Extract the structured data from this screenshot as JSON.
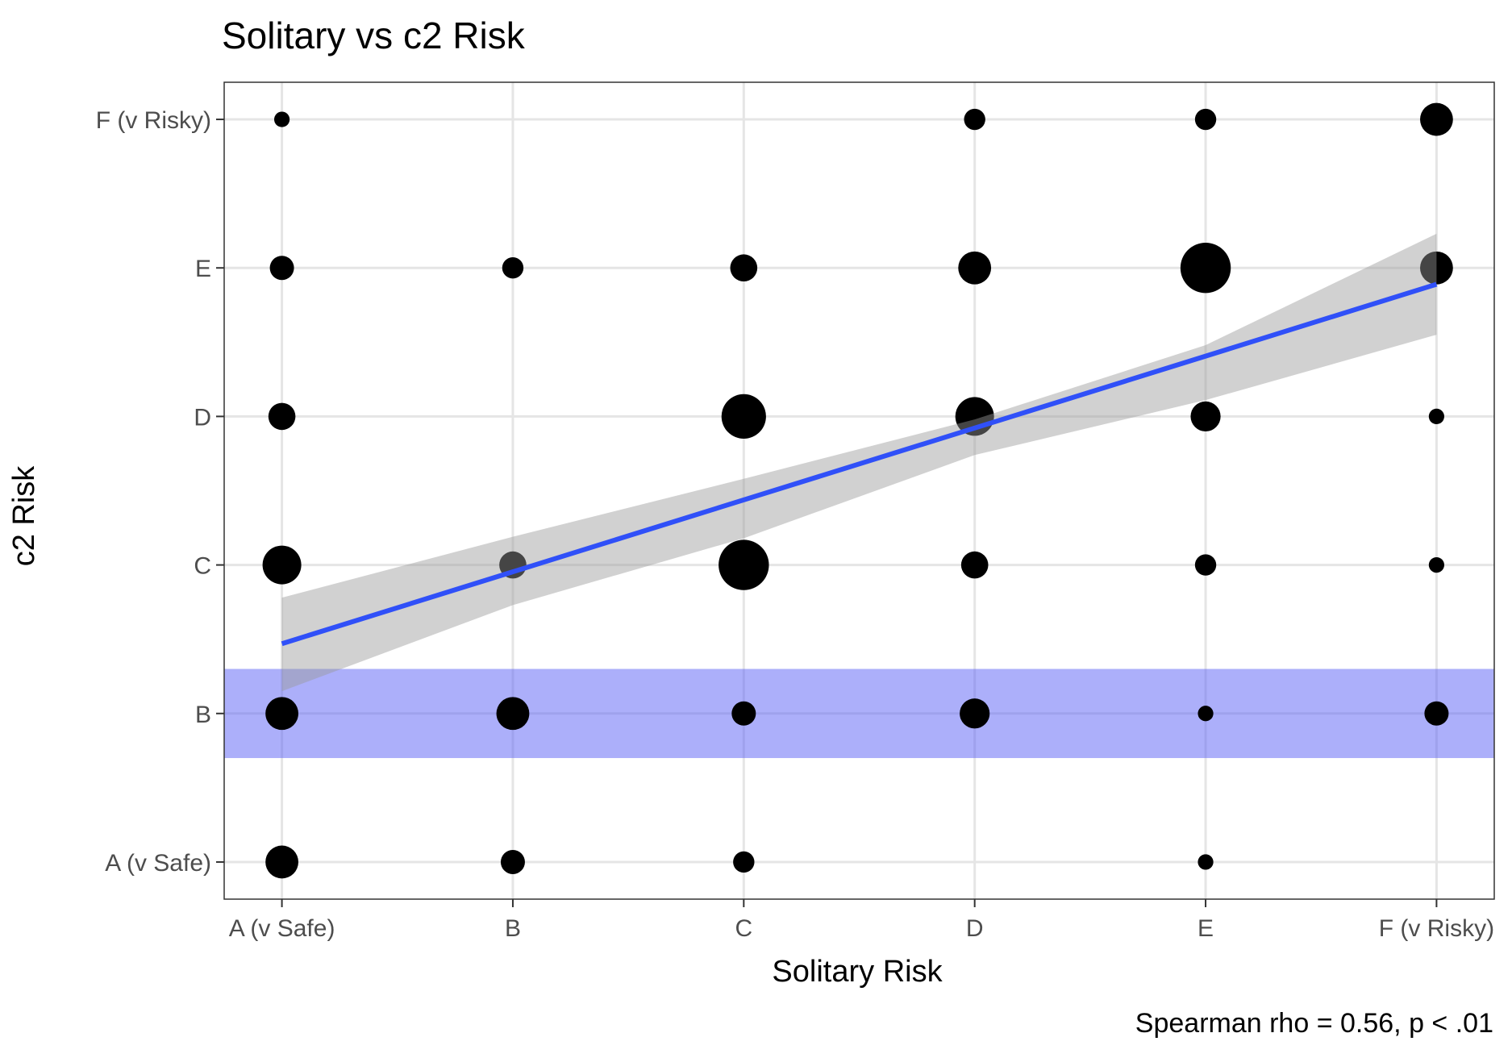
{
  "chart_data": {
    "type": "scatter",
    "title": "Solitary vs c2 Risk",
    "xlabel": "Solitary Risk",
    "ylabel": "c2 Risk",
    "caption": "Spearman rho = 0.56, p < .01",
    "x_categories": [
      "A (v Safe)",
      "B",
      "C",
      "D",
      "E",
      "F (v Risky)"
    ],
    "y_categories": [
      "A (v Safe)",
      "B",
      "C",
      "D",
      "E",
      "F (v Risky)"
    ],
    "xlim": [
      0.75,
      6.25
    ],
    "ylim": [
      0.75,
      6.25
    ],
    "grid": true,
    "legend": "none",
    "point_color": "#000000",
    "points": [
      {
        "x": "A (v Safe)",
        "y": "F (v Risky)",
        "size": 1
      },
      {
        "x": "D",
        "y": "F (v Risky)",
        "size": 2
      },
      {
        "x": "E",
        "y": "F (v Risky)",
        "size": 2
      },
      {
        "x": "F (v Risky)",
        "y": "F (v Risky)",
        "size": 4
      },
      {
        "x": "A (v Safe)",
        "y": "E",
        "size": 2.5
      },
      {
        "x": "B",
        "y": "E",
        "size": 2
      },
      {
        "x": "C",
        "y": "E",
        "size": 3
      },
      {
        "x": "D",
        "y": "E",
        "size": 4
      },
      {
        "x": "E",
        "y": "E",
        "size": 7
      },
      {
        "x": "F (v Risky)",
        "y": "E",
        "size": 4
      },
      {
        "x": "A (v Safe)",
        "y": "D",
        "size": 3
      },
      {
        "x": "C",
        "y": "D",
        "size": 6
      },
      {
        "x": "D",
        "y": "D",
        "size": 5
      },
      {
        "x": "E",
        "y": "D",
        "size": 3.5
      },
      {
        "x": "F (v Risky)",
        "y": "D",
        "size": 1
      },
      {
        "x": "A (v Safe)",
        "y": "C",
        "size": 5
      },
      {
        "x": "B",
        "y": "C",
        "size": 3
      },
      {
        "x": "C",
        "y": "C",
        "size": 7
      },
      {
        "x": "D",
        "y": "C",
        "size": 3
      },
      {
        "x": "E",
        "y": "C",
        "size": 2
      },
      {
        "x": "F (v Risky)",
        "y": "C",
        "size": 1
      },
      {
        "x": "A (v Safe)",
        "y": "B",
        "size": 4
      },
      {
        "x": "B",
        "y": "B",
        "size": 4
      },
      {
        "x": "C",
        "y": "B",
        "size": 2.5
      },
      {
        "x": "D",
        "y": "B",
        "size": 3.5
      },
      {
        "x": "E",
        "y": "B",
        "size": 1
      },
      {
        "x": "F (v Risky)",
        "y": "B",
        "size": 2.5
      },
      {
        "x": "A (v Safe)",
        "y": "A (v Safe)",
        "size": 4
      },
      {
        "x": "B",
        "y": "A (v Safe)",
        "size": 2.5
      },
      {
        "x": "C",
        "y": "A (v Safe)",
        "size": 2
      },
      {
        "x": "E",
        "y": "A (v Safe)",
        "size": 1
      }
    ],
    "trend_line": {
      "color": "#3050F8",
      "start": [
        1,
        2.47
      ],
      "end": [
        6,
        4.89
      ]
    },
    "confidence_band": {
      "color": "#999999",
      "x": [
        1,
        2,
        3,
        4,
        5,
        6
      ],
      "upper": [
        2.78,
        3.19,
        3.58,
        3.98,
        4.48,
        5.23
      ],
      "lower": [
        2.15,
        2.73,
        3.18,
        3.74,
        4.11,
        4.55
      ]
    },
    "highlight_band": {
      "color": "#5A5FF5",
      "y_range": [
        1.7,
        2.3
      ]
    }
  }
}
